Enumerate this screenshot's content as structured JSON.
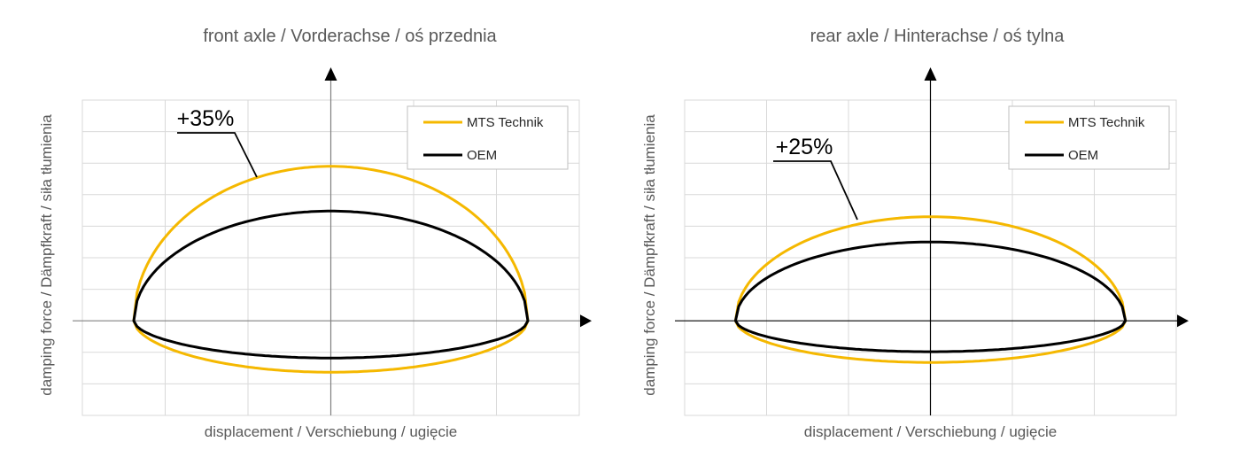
{
  "colors": {
    "mts": "#F5B800",
    "oem": "#000000",
    "grid": "#D9D9D9",
    "axis": "#808080"
  },
  "chart_data": [
    {
      "type": "line",
      "title": "front axle / Vorderachse / oś przednia",
      "xlabel": "displacement / Verschiebung / ugięcie",
      "ylabel": "damping force / Dämpfkraft / siła tłumienia",
      "xlim": [
        -3,
        3
      ],
      "ylim": [
        -3,
        7
      ],
      "grid": true,
      "legend_position": "top-right",
      "annotation": "+35%",
      "displacement_amplitude": 2.38,
      "series": [
        {
          "name": "MTS Technik",
          "color": "#F5B800",
          "peak_rebound": 4.9,
          "peak_compression": -1.63
        },
        {
          "name": "OEM",
          "color": "#000000",
          "peak_rebound": 3.48,
          "peak_compression": -1.18
        }
      ]
    },
    {
      "type": "line",
      "title": "rear axle / Hinterachse / oś tylna",
      "xlabel": "displacement / Verschiebung / ugięcie",
      "ylabel": "damping force / Dämpfkraft / siła tłumienia",
      "xlim": [
        -3,
        3
      ],
      "ylim": [
        -3,
        7
      ],
      "grid": true,
      "legend_position": "top-right",
      "annotation": "+25%",
      "displacement_amplitude": 2.38,
      "series": [
        {
          "name": "MTS Technik",
          "color": "#F5B800",
          "peak_rebound": 3.3,
          "peak_compression": -1.32
        },
        {
          "name": "OEM",
          "color": "#000000",
          "peak_rebound": 2.5,
          "peak_compression": -0.98
        }
      ]
    }
  ]
}
